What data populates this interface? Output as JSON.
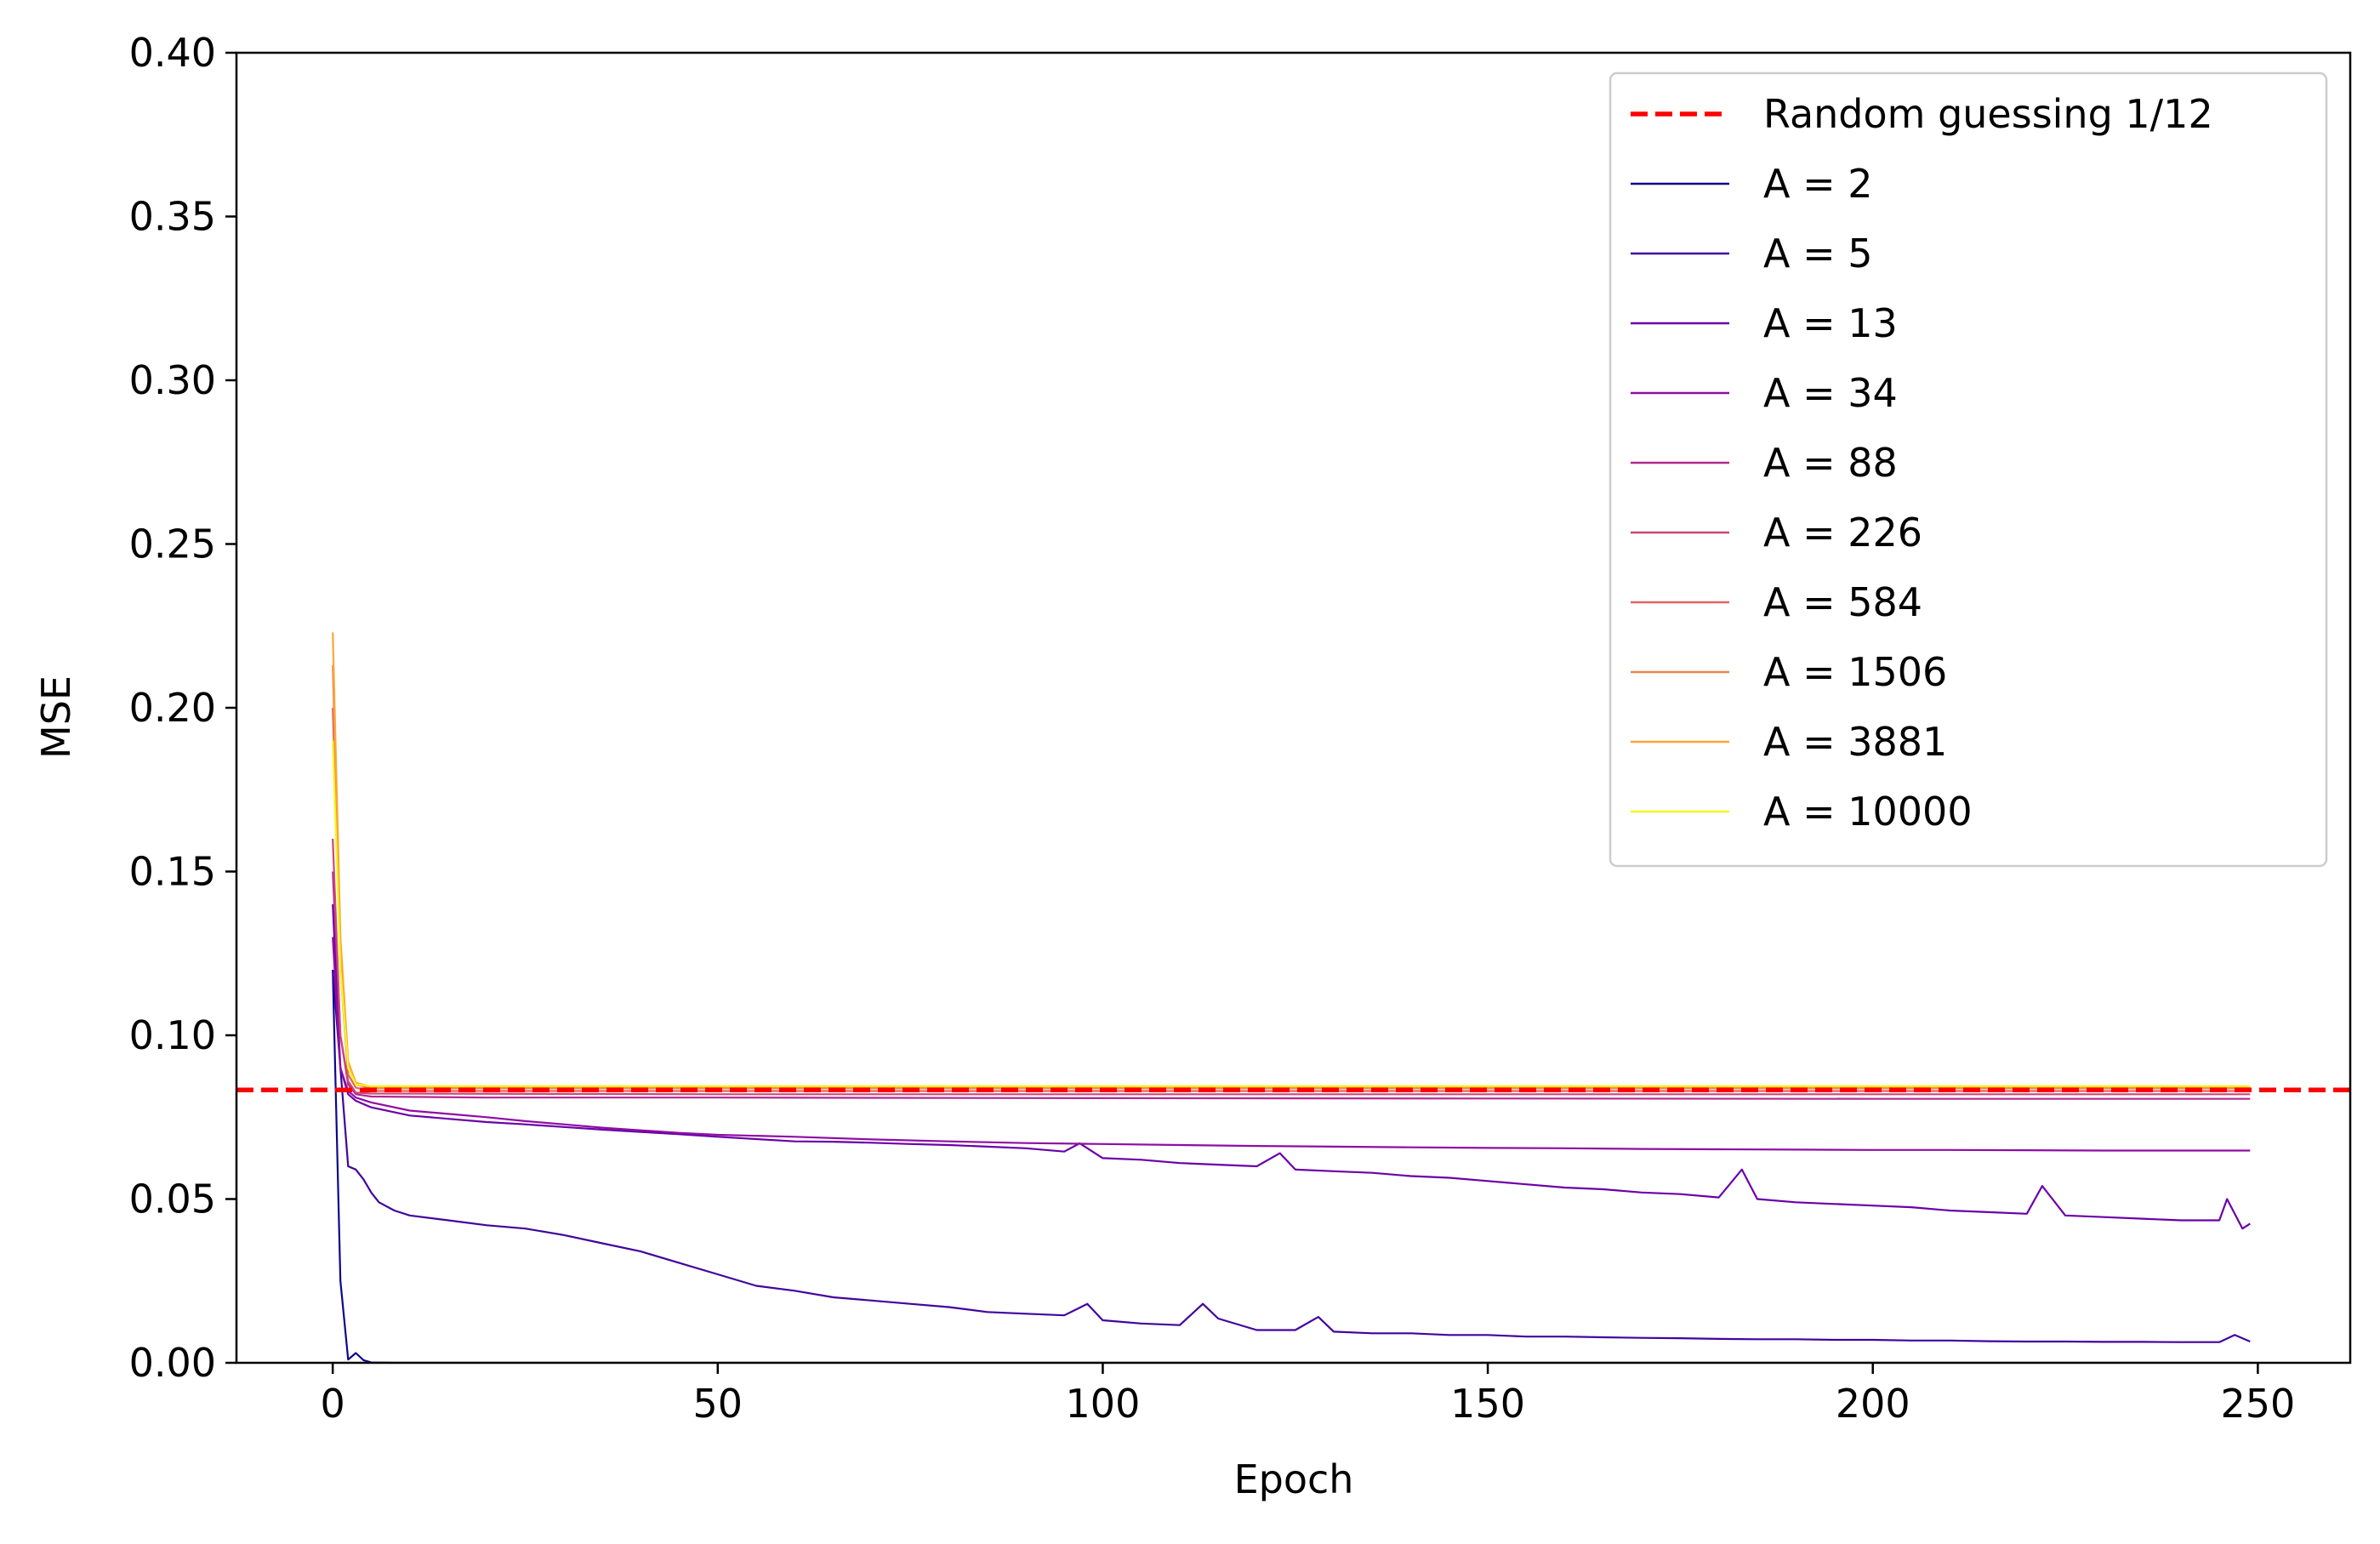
{
  "chart_data": {
    "type": "line",
    "title": "",
    "xlabel": "Epoch",
    "ylabel": "MSE",
    "xlim": [
      -12.5,
      262
    ],
    "ylim": [
      0,
      0.4
    ],
    "xticks": [
      0,
      50,
      100,
      150,
      200,
      250
    ],
    "xtick_labels": [
      "0",
      "50",
      "100",
      "150",
      "200",
      "250"
    ],
    "yticks": [
      0,
      0.05,
      0.1,
      0.15,
      0.2,
      0.25,
      0.3,
      0.35,
      0.4
    ],
    "ytick_labels": [
      "0.00",
      "0.05",
      "0.10",
      "0.15",
      "0.20",
      "0.25",
      "0.30",
      "0.35",
      "0.40"
    ],
    "grid": false,
    "legend_position": "top-right",
    "reference_line": {
      "name": "Random guessing 1/12",
      "y": 0.0833,
      "color": "#ff0000",
      "style": "dashed"
    },
    "series": [
      {
        "name": "A = 2",
        "color": "#0d0887",
        "points": [
          [
            0,
            0.12
          ],
          [
            1,
            0.025
          ],
          [
            2,
            0.001
          ],
          [
            3,
            0.003
          ],
          [
            4,
            0.0008
          ],
          [
            5,
            0.0001
          ],
          [
            8,
            0.0
          ],
          [
            12,
            0.0
          ],
          [
            249,
            0.0
          ]
        ]
      },
      {
        "name": "A = 5",
        "color": "#41049d",
        "points": [
          [
            0,
            0.12
          ],
          [
            1,
            0.09
          ],
          [
            2,
            0.06
          ],
          [
            3,
            0.059
          ],
          [
            4,
            0.056
          ],
          [
            5,
            0.052
          ],
          [
            6,
            0.049
          ],
          [
            8,
            0.0465
          ],
          [
            10,
            0.045
          ],
          [
            15,
            0.0435
          ],
          [
            20,
            0.042
          ],
          [
            25,
            0.041
          ],
          [
            30,
            0.039
          ],
          [
            35,
            0.0365
          ],
          [
            40,
            0.034
          ],
          [
            45,
            0.0305
          ],
          [
            50,
            0.027
          ],
          [
            55,
            0.0235
          ],
          [
            60,
            0.022
          ],
          [
            65,
            0.02
          ],
          [
            70,
            0.019
          ],
          [
            75,
            0.018
          ],
          [
            80,
            0.017
          ],
          [
            85,
            0.0155
          ],
          [
            90,
            0.015
          ],
          [
            95,
            0.0145
          ],
          [
            98,
            0.018
          ],
          [
            100,
            0.013
          ],
          [
            105,
            0.012
          ],
          [
            110,
            0.0115
          ],
          [
            113,
            0.018
          ],
          [
            115,
            0.0135
          ],
          [
            120,
            0.01
          ],
          [
            125,
            0.01
          ],
          [
            128,
            0.014
          ],
          [
            130,
            0.0095
          ],
          [
            135,
            0.009
          ],
          [
            140,
            0.009
          ],
          [
            145,
            0.0085
          ],
          [
            150,
            0.0085
          ],
          [
            155,
            0.008
          ],
          [
            160,
            0.008
          ],
          [
            165,
            0.0078
          ],
          [
            170,
            0.0076
          ],
          [
            175,
            0.0075
          ],
          [
            180,
            0.0073
          ],
          [
            185,
            0.0072
          ],
          [
            190,
            0.0072
          ],
          [
            195,
            0.007
          ],
          [
            200,
            0.007
          ],
          [
            205,
            0.0068
          ],
          [
            210,
            0.0068
          ],
          [
            215,
            0.0066
          ],
          [
            220,
            0.0065
          ],
          [
            225,
            0.0065
          ],
          [
            230,
            0.0064
          ],
          [
            235,
            0.0064
          ],
          [
            240,
            0.0063
          ],
          [
            245,
            0.0063
          ],
          [
            247,
            0.0085
          ],
          [
            249,
            0.0065
          ]
        ]
      },
      {
        "name": "A = 13",
        "color": "#6a00a8",
        "points": [
          [
            0,
            0.14
          ],
          [
            1,
            0.09
          ],
          [
            2,
            0.082
          ],
          [
            3,
            0.08
          ],
          [
            5,
            0.078
          ],
          [
            10,
            0.0755
          ],
          [
            15,
            0.0745
          ],
          [
            20,
            0.0735
          ],
          [
            25,
            0.0728
          ],
          [
            30,
            0.072
          ],
          [
            35,
            0.0712
          ],
          [
            40,
            0.0705
          ],
          [
            45,
            0.0698
          ],
          [
            50,
            0.069
          ],
          [
            55,
            0.0683
          ],
          [
            60,
            0.0676
          ],
          [
            65,
            0.0675
          ],
          [
            70,
            0.0672
          ],
          [
            75,
            0.0668
          ],
          [
            80,
            0.0665
          ],
          [
            85,
            0.066
          ],
          [
            90,
            0.0655
          ],
          [
            95,
            0.0645
          ],
          [
            97,
            0.067
          ],
          [
            100,
            0.0625
          ],
          [
            105,
            0.062
          ],
          [
            110,
            0.061
          ],
          [
            115,
            0.0605
          ],
          [
            120,
            0.06
          ],
          [
            123,
            0.064
          ],
          [
            125,
            0.059
          ],
          [
            130,
            0.0585
          ],
          [
            135,
            0.058
          ],
          [
            140,
            0.057
          ],
          [
            145,
            0.0565
          ],
          [
            150,
            0.0555
          ],
          [
            155,
            0.0545
          ],
          [
            160,
            0.0535
          ],
          [
            165,
            0.053
          ],
          [
            170,
            0.052
          ],
          [
            175,
            0.0515
          ],
          [
            180,
            0.0505
          ],
          [
            183,
            0.059
          ],
          [
            185,
            0.05
          ],
          [
            190,
            0.049
          ],
          [
            195,
            0.0485
          ],
          [
            200,
            0.048
          ],
          [
            205,
            0.0475
          ],
          [
            210,
            0.0465
          ],
          [
            215,
            0.046
          ],
          [
            220,
            0.0455
          ],
          [
            222,
            0.054
          ],
          [
            225,
            0.045
          ],
          [
            230,
            0.0445
          ],
          [
            235,
            0.044
          ],
          [
            240,
            0.0435
          ],
          [
            245,
            0.0435
          ],
          [
            246,
            0.05
          ],
          [
            248,
            0.041
          ],
          [
            249,
            0.0425
          ]
        ]
      },
      {
        "name": "A = 34",
        "color": "#8f0da4",
        "points": [
          [
            0,
            0.13
          ],
          [
            1,
            0.09
          ],
          [
            2,
            0.083
          ],
          [
            3,
            0.081
          ],
          [
            5,
            0.0795
          ],
          [
            10,
            0.077
          ],
          [
            15,
            0.076
          ],
          [
            20,
            0.075
          ],
          [
            25,
            0.0738
          ],
          [
            30,
            0.0728
          ],
          [
            35,
            0.0718
          ],
          [
            40,
            0.071
          ],
          [
            45,
            0.0702
          ],
          [
            50,
            0.0696
          ],
          [
            60,
            0.069
          ],
          [
            70,
            0.0682
          ],
          [
            80,
            0.0676
          ],
          [
            90,
            0.0671
          ],
          [
            100,
            0.0668
          ],
          [
            110,
            0.0665
          ],
          [
            120,
            0.0662
          ],
          [
            130,
            0.066
          ],
          [
            140,
            0.0658
          ],
          [
            150,
            0.0656
          ],
          [
            160,
            0.0655
          ],
          [
            170,
            0.0653
          ],
          [
            180,
            0.0652
          ],
          [
            190,
            0.0651
          ],
          [
            200,
            0.065
          ],
          [
            210,
            0.065
          ],
          [
            220,
            0.0649
          ],
          [
            230,
            0.0648
          ],
          [
            240,
            0.0648
          ],
          [
            249,
            0.0648
          ]
        ]
      },
      {
        "name": "A = 88",
        "color": "#b12a90",
        "points": [
          [
            0,
            0.15
          ],
          [
            1,
            0.1
          ],
          [
            2,
            0.085
          ],
          [
            3,
            0.082
          ],
          [
            5,
            0.0813
          ],
          [
            20,
            0.081
          ],
          [
            50,
            0.081
          ],
          [
            100,
            0.0808
          ],
          [
            150,
            0.0807
          ],
          [
            200,
            0.0806
          ],
          [
            249,
            0.0806
          ]
        ]
      },
      {
        "name": "A = 226",
        "color": "#cc4778",
        "points": [
          [
            0,
            0.16
          ],
          [
            1,
            0.1
          ],
          [
            2,
            0.086
          ],
          [
            3,
            0.0825
          ],
          [
            5,
            0.0822
          ],
          [
            50,
            0.082
          ],
          [
            100,
            0.082
          ],
          [
            150,
            0.082
          ],
          [
            200,
            0.082
          ],
          [
            249,
            0.082
          ]
        ]
      },
      {
        "name": "A = 584",
        "color": "#e16462",
        "points": [
          [
            0,
            0.2
          ],
          [
            1,
            0.12
          ],
          [
            2,
            0.088
          ],
          [
            3,
            0.084
          ],
          [
            5,
            0.083
          ],
          [
            50,
            0.083
          ],
          [
            100,
            0.083
          ],
          [
            150,
            0.083
          ],
          [
            200,
            0.083
          ],
          [
            249,
            0.083
          ]
        ]
      },
      {
        "name": "A = 1506",
        "color": "#f2844b",
        "points": [
          [
            0,
            0.213
          ],
          [
            1,
            0.125
          ],
          [
            2,
            0.09
          ],
          [
            3,
            0.085
          ],
          [
            5,
            0.0838
          ],
          [
            50,
            0.0838
          ],
          [
            100,
            0.0838
          ],
          [
            150,
            0.0838
          ],
          [
            200,
            0.0838
          ],
          [
            249,
            0.0838
          ]
        ]
      },
      {
        "name": "A = 3881",
        "color": "#fca636",
        "points": [
          [
            0,
            0.223
          ],
          [
            1,
            0.13
          ],
          [
            2,
            0.092
          ],
          [
            3,
            0.0855
          ],
          [
            5,
            0.0843
          ],
          [
            50,
            0.0843
          ],
          [
            100,
            0.0843
          ],
          [
            150,
            0.0843
          ],
          [
            200,
            0.0843
          ],
          [
            249,
            0.0843
          ]
        ]
      },
      {
        "name": "A = 10000",
        "color": "#f0f921",
        "points": [
          [
            0,
            0.19
          ],
          [
            1,
            0.12
          ],
          [
            2,
            0.09
          ],
          [
            3,
            0.085
          ],
          [
            5,
            0.0845
          ],
          [
            50,
            0.0845
          ],
          [
            100,
            0.0845
          ],
          [
            150,
            0.0845
          ],
          [
            200,
            0.0845
          ],
          [
            249,
            0.0845
          ]
        ]
      }
    ]
  }
}
